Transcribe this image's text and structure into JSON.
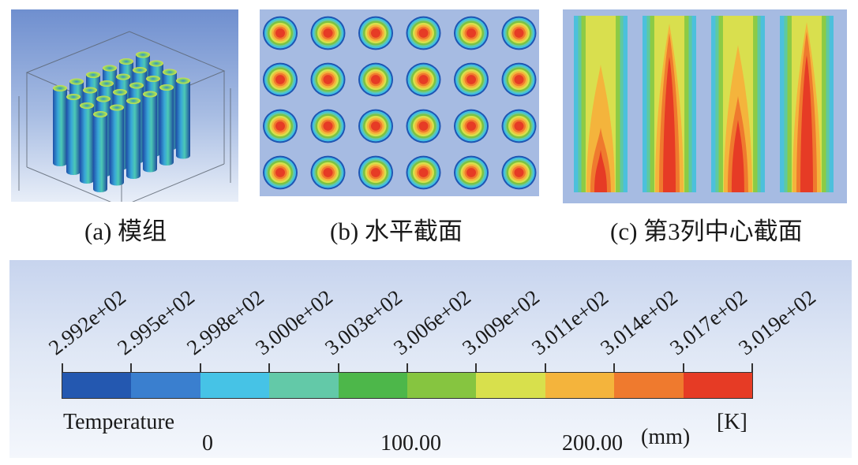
{
  "captions": {
    "a": "(a) 模组",
    "b": "(b) 水平截面",
    "c": "(c) 第3列中心截面"
  },
  "legend": {
    "quantity": "Temperature",
    "unit": "[K]",
    "tick_labels": [
      "2.992e+02",
      "2.995e+02",
      "2.998e+02",
      "3.000e+02",
      "3.003e+02",
      "3.006e+02",
      "3.009e+02",
      "3.011e+02",
      "3.014e+02",
      "3.017e+02",
      "3.019e+02"
    ],
    "colors": [
      "#2458b0",
      "#3a7fcf",
      "#46c3e6",
      "#63c9a8",
      "#4db74a",
      "#86c540",
      "#d8e04c",
      "#f4b43c",
      "#ef7a2e",
      "#e63b25"
    ],
    "scale": {
      "labels": [
        "0",
        "100.00",
        "200.00"
      ],
      "unit": "(mm)"
    }
  },
  "horizontal_section": {
    "rows": 4,
    "cols": 6
  },
  "column_section": {
    "strips": 4
  }
}
